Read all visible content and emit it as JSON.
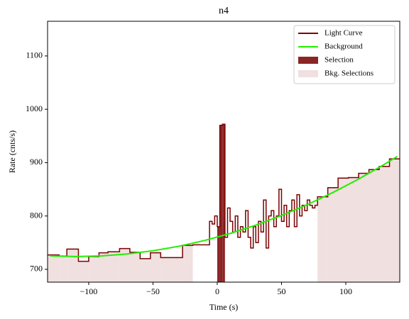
{
  "chart_data": {
    "type": "step",
    "title": "n4",
    "xlabel": "Time (s)",
    "ylabel": "Rate (cnts/s)",
    "xlim": [
      -132,
      142
    ],
    "ylim": [
      676,
      1165
    ],
    "xticks": [
      {
        "value": -100,
        "label": "−100"
      },
      {
        "value": -50,
        "label": "−50"
      },
      0,
      50,
      100
    ],
    "yticks": [
      700,
      800,
      900,
      1000,
      1100
    ],
    "legend": "upper right",
    "series": [
      {
        "name": "Light Curve",
        "color": "#7a0000",
        "bins": [
          -132,
          -123,
          -117,
          -108,
          -100,
          -92,
          -85,
          -76,
          -68,
          -60,
          -52,
          -44,
          -35,
          -27,
          -19,
          -12,
          -6,
          -4,
          -2,
          0,
          2,
          4,
          6,
          8,
          10,
          12,
          14,
          16,
          18,
          20,
          22,
          24,
          26,
          28,
          30,
          32,
          34,
          36,
          38,
          40,
          42,
          44,
          46,
          48,
          50,
          52,
          54,
          56,
          58,
          60,
          62,
          64,
          66,
          68,
          70,
          72,
          74,
          76,
          78,
          86,
          94,
          102,
          110,
          118,
          126,
          134,
          142
        ],
        "values": [
          727,
          725,
          738,
          715,
          724,
          731,
          733,
          739,
          732,
          720,
          731,
          722,
          722,
          745,
          746,
          746,
          790,
          785,
          800,
          780,
          970,
          972,
          760,
          815,
          790,
          770,
          800,
          760,
          780,
          770,
          810,
          760,
          740,
          780,
          750,
          790,
          770,
          830,
          740,
          800,
          810,
          780,
          800,
          850,
          790,
          820,
          780,
          810,
          830,
          780,
          840,
          800,
          820,
          810,
          830,
          820,
          815,
          820,
          836,
          853,
          871,
          872,
          880,
          887,
          893,
          907
        ]
      },
      {
        "name": "Background",
        "color": "#22ee00",
        "x": [
          -130,
          -110,
          -90,
          -70,
          -50,
          -30,
          -10,
          10,
          30,
          50,
          70,
          90,
          110,
          130,
          140
        ],
        "values": [
          725.2,
          724,
          725.2,
          728.8,
          734.8,
          743.2,
          754,
          767.2,
          782.8,
          800.8,
          821.2,
          844,
          869.2,
          896.8,
          911.5
        ]
      },
      {
        "name": "Selection",
        "color": "#8b2525",
        "range": [
          0,
          6
        ]
      },
      {
        "name": "Bkg. Selections",
        "color": "#f0e0e0",
        "ranges": [
          [
            -132,
            -19
          ],
          [
            78,
            142
          ]
        ]
      }
    ]
  }
}
